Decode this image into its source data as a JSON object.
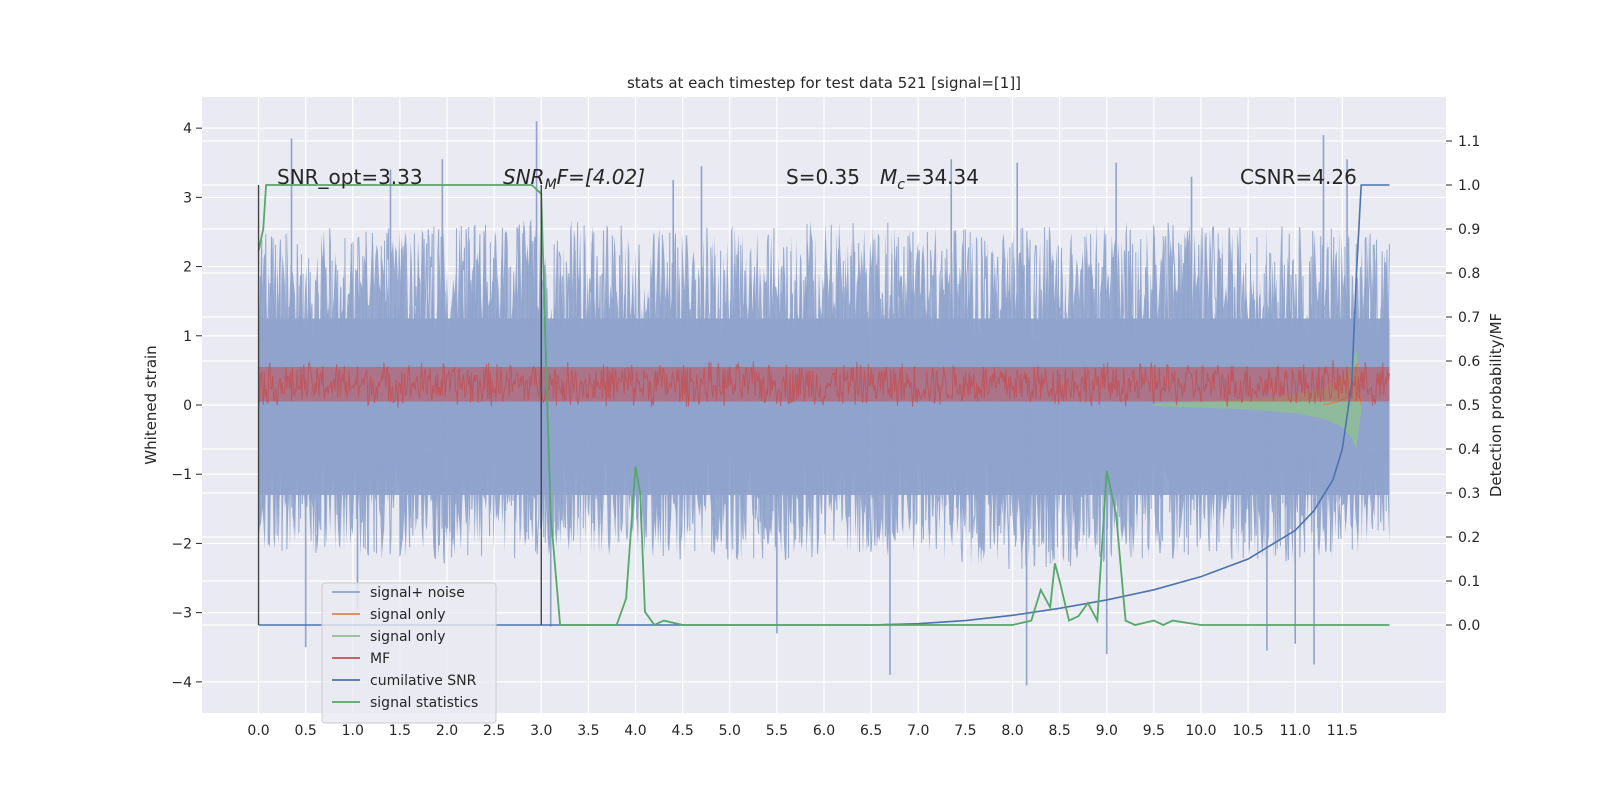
{
  "chart_data": {
    "type": "line",
    "title": "stats at each timestep for test data 521 [signal=[1]]",
    "xlabel": "",
    "ylabel": "Whitened strain",
    "y2label": "Detection probability/MF",
    "xlim": [
      -0.6,
      12.6
    ],
    "ylim": [
      -4.45,
      4.45
    ],
    "y2lim": [
      -0.2,
      1.2
    ],
    "xticks": [
      "0.0",
      "0.5",
      "1.0",
      "1.5",
      "2.0",
      "2.5",
      "3.0",
      "3.5",
      "4.0",
      "4.5",
      "5.0",
      "5.5",
      "6.0",
      "6.5",
      "7.0",
      "7.5",
      "8.0",
      "8.5",
      "9.0",
      "9.5",
      "10.0",
      "10.5",
      "11.0",
      "11.5"
    ],
    "yticks": [
      "4",
      "3",
      "2",
      "1",
      "0",
      "−1",
      "−2",
      "−3",
      "−4"
    ],
    "y2ticks": [
      "1.1",
      "1.0",
      "0.9",
      "0.8",
      "0.7",
      "0.6",
      "0.5",
      "0.4",
      "0.3",
      "0.2",
      "0.1",
      "0.0"
    ],
    "grid": true,
    "legend_position": "lower-left",
    "annotations": {
      "snr_opt": "SNR_opt=3.33",
      "snr_mf_base": "SNR",
      "snr_mf_sub": "M",
      "snr_mf_rest": "F=[4.02]",
      "s_value": "S=0.35",
      "mc_base": "M",
      "mc_sub": "c",
      "mc_rest": "=34.34",
      "csnr": "CSNR=4.26"
    },
    "series": [
      {
        "name": "signal+ noise",
        "color": "#8fa3cc",
        "envelope_x": [
          0.0,
          1.0,
          2.0,
          3.0,
          4.0,
          5.0,
          6.0,
          7.0,
          8.0,
          9.0,
          10.0,
          11.0,
          12.0
        ],
        "envelope_upper": [
          2.5,
          2.6,
          2.6,
          2.7,
          2.6,
          2.6,
          2.7,
          2.6,
          2.6,
          2.7,
          2.6,
          2.6,
          2.5
        ],
        "envelope_lower": [
          -2.1,
          -2.2,
          -2.3,
          -2.2,
          -2.2,
          -2.3,
          -2.2,
          -2.2,
          -2.4,
          -2.3,
          -2.2,
          -2.3,
          -2.1
        ],
        "spikes": [
          [
            0.35,
            3.85
          ],
          [
            1.4,
            3.4
          ],
          [
            1.95,
            3.55
          ],
          [
            2.95,
            4.1
          ],
          [
            4.4,
            3.25
          ],
          [
            4.7,
            3.45
          ],
          [
            7.35,
            3.55
          ],
          [
            8.05,
            3.5
          ],
          [
            9.1,
            3.5
          ],
          [
            9.9,
            3.3
          ],
          [
            11.3,
            3.9
          ],
          [
            11.55,
            3.55
          ],
          [
            0.5,
            -3.5
          ],
          [
            1.05,
            -2.95
          ],
          [
            3.1,
            -3.2
          ],
          [
            5.5,
            -3.3
          ],
          [
            6.7,
            -3.9
          ],
          [
            8.15,
            -4.05
          ],
          [
            9.0,
            -3.6
          ],
          [
            10.7,
            -3.55
          ],
          [
            11.0,
            -3.45
          ],
          [
            11.2,
            -3.75
          ]
        ]
      },
      {
        "name": "signal only",
        "color": "#dd8452",
        "x": [
          11.3,
          11.45,
          11.6,
          11.65,
          11.7
        ],
        "y": [
          0.0,
          0.05,
          0.15,
          0.6,
          0.0
        ]
      },
      {
        "name": "signal only",
        "color": "#8fbf8f",
        "x": [
          9.5,
          10.0,
          10.5,
          11.0,
          11.3,
          11.5,
          11.6,
          11.65,
          11.7
        ],
        "y_band": [
          0.02,
          0.05,
          0.08,
          0.15,
          0.25,
          0.4,
          0.6,
          0.8,
          0.1
        ]
      },
      {
        "name": "MF",
        "color": "#c44e52",
        "y_center": 0.3,
        "y_amplitude": 0.35
      },
      {
        "name": "cumilative SNR",
        "color": "#4c72b0",
        "x": [
          0.0,
          6.5,
          7.0,
          7.5,
          8.0,
          8.5,
          9.0,
          9.5,
          10.0,
          10.5,
          11.0,
          11.2,
          11.4,
          11.5,
          11.6,
          11.65,
          11.7,
          12.0
        ],
        "y2": [
          0.0,
          0.0,
          0.003,
          0.01,
          0.022,
          0.038,
          0.057,
          0.08,
          0.11,
          0.15,
          0.215,
          0.26,
          0.33,
          0.4,
          0.55,
          0.8,
          1.0,
          1.0
        ]
      },
      {
        "name": "signal statistics",
        "color": "#55a868",
        "x": [
          0.0,
          0.05,
          0.08,
          0.2,
          0.5,
          1.0,
          1.5,
          2.0,
          2.5,
          2.9,
          3.0,
          3.05,
          3.1,
          3.2,
          3.5,
          3.8,
          3.9,
          4.0,
          4.05,
          4.1,
          4.2,
          4.3,
          4.5,
          5.0,
          6.0,
          7.0,
          8.0,
          8.2,
          8.3,
          8.4,
          8.45,
          8.5,
          8.6,
          8.7,
          8.8,
          8.85,
          8.9,
          9.0,
          9.1,
          9.2,
          9.3,
          9.5,
          9.6,
          9.7,
          10.0,
          11.0,
          11.5,
          11.6,
          11.65,
          11.7,
          12.0
        ],
        "y2": [
          0.85,
          0.9,
          1.0,
          1.0,
          1.0,
          1.0,
          1.0,
          1.0,
          1.0,
          1.0,
          0.98,
          0.6,
          0.25,
          0.0,
          0.0,
          0.0,
          0.06,
          0.36,
          0.3,
          0.03,
          0.0,
          0.01,
          0.0,
          0.0,
          0.0,
          0.0,
          0.0,
          0.01,
          0.08,
          0.04,
          0.14,
          0.1,
          0.01,
          0.02,
          0.05,
          0.03,
          0.01,
          0.35,
          0.25,
          0.01,
          0.0,
          0.01,
          0.0,
          0.01,
          0.0,
          0.0,
          0.0,
          0.0,
          0.0,
          0.0,
          0.0
        ]
      }
    ],
    "vertical_lines_x": [
      0.0,
      3.0
    ],
    "legend": [
      {
        "label": "signal+ noise",
        "color": "#8fa3cc"
      },
      {
        "label": "signal only",
        "color": "#dd8452"
      },
      {
        "label": "signal only",
        "color": "#8fbf8f"
      },
      {
        "label": "MF",
        "color": "#c44e52"
      },
      {
        "label": "cumilative SNR",
        "color": "#4c72b0"
      },
      {
        "label": "signal statistics",
        "color": "#55a868"
      }
    ]
  }
}
